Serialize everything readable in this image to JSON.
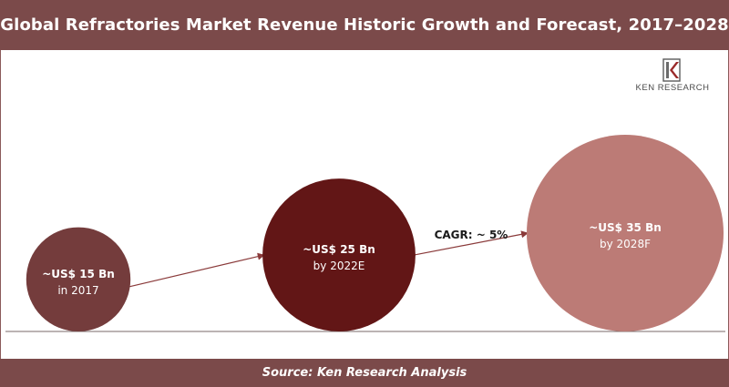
{
  "header": {
    "title": "Global Refractories Market Revenue Historic Growth and Forecast, 2017–2028"
  },
  "footer": {
    "source": "Source: Ken Research Analysis"
  },
  "logo": {
    "text": "KEN RESEARCH"
  },
  "colors": {
    "header_bg": "#7b4a4a",
    "bubble_2017": "#743c3c",
    "bubble_2022": "#621616",
    "bubble_2028": "#bc7b76",
    "arrow": "#8a3a3a"
  },
  "chart_data": {
    "type": "bubble",
    "title": "Global Refractories Market Revenue Historic Growth and Forecast, 2017–2028",
    "unit": "US$ Bn",
    "points": [
      {
        "value": 15,
        "label": "~US$ 15 Bn",
        "sub": "in 2017"
      },
      {
        "value": 25,
        "label": "~US$ 25 Bn",
        "sub": "by 2022E"
      },
      {
        "value": 35,
        "label": "~US$ 35 Bn",
        "sub": "by 2028F"
      }
    ],
    "annotation": "CAGR: ~ 5%"
  }
}
